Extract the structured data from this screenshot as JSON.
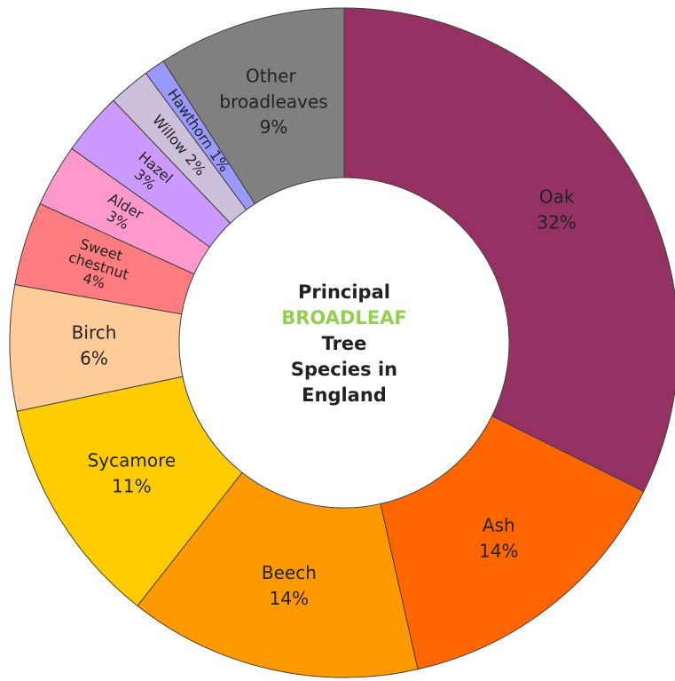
{
  "chart_data": {
    "type": "donut",
    "title_lines": [
      {
        "text": "Principal"
      },
      {
        "text": "BROADLEAF",
        "color": "#92d050"
      },
      {
        "text": "Tree"
      },
      {
        "text": "Species in"
      },
      {
        "text": "England"
      }
    ],
    "categories": [
      "Oak",
      "Ash",
      "Beech",
      "Sycamore",
      "Birch",
      "Sweet chestnut",
      "Alder",
      "Hazel",
      "Willow",
      "Hawthorn",
      "Other broadleaves"
    ],
    "values": [
      32,
      14,
      14,
      11,
      6,
      4,
      3,
      3,
      2,
      1,
      9
    ],
    "value_labels": [
      "32%",
      "14%",
      "14%",
      "11%",
      "6%",
      "4%",
      "3%",
      "3%",
      "2%",
      "1%",
      "9%"
    ],
    "colors": [
      "#953163",
      "#ff6600",
      "#ff9900",
      "#ffcc00",
      "#ffcc99",
      "#ff7c80",
      "#ff99cc",
      "#cc99ff",
      "#ccc0da",
      "#9999ff",
      "#808080"
    ]
  }
}
